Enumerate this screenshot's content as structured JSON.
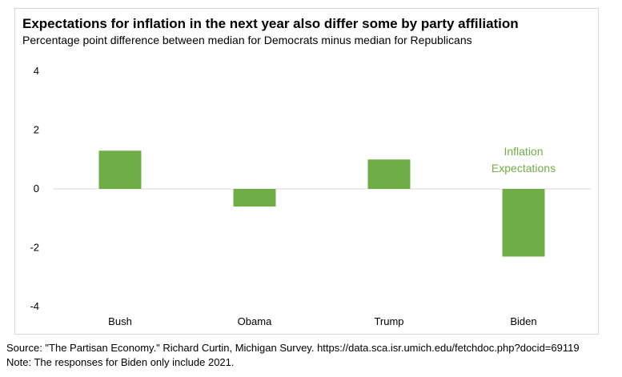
{
  "chart_data": {
    "type": "bar",
    "title": "Expectations for inflation in the next year also differ some by party affiliation",
    "subtitle": "Percentage point difference between median for Democrats minus median for Republicans",
    "categories": [
      "Bush",
      "Obama",
      "Trump",
      "Biden"
    ],
    "series": [
      {
        "name": "Inflation Expectations",
        "values": [
          1.3,
          -0.6,
          1.0,
          -2.3
        ]
      }
    ],
    "ylim": [
      -4,
      4
    ],
    "yticks": [
      "4",
      "2",
      "0",
      "-2",
      "-4"
    ],
    "ytick_values": [
      4,
      2,
      0,
      -2,
      -4
    ],
    "grid": false,
    "legend": "right",
    "legend_lines": [
      "Inflation",
      "Expectations"
    ],
    "bar_color": "#70ad47",
    "axis_color": "#d9d9d9"
  },
  "footer": {
    "source": "Source: \"The Partisan Economy.\" Richard Curtin, Michigan Survey. https://data.sca.isr.umich.edu/fetchdoc.php?docid=69119",
    "note": "Note: The responses for Biden only include 2021."
  }
}
